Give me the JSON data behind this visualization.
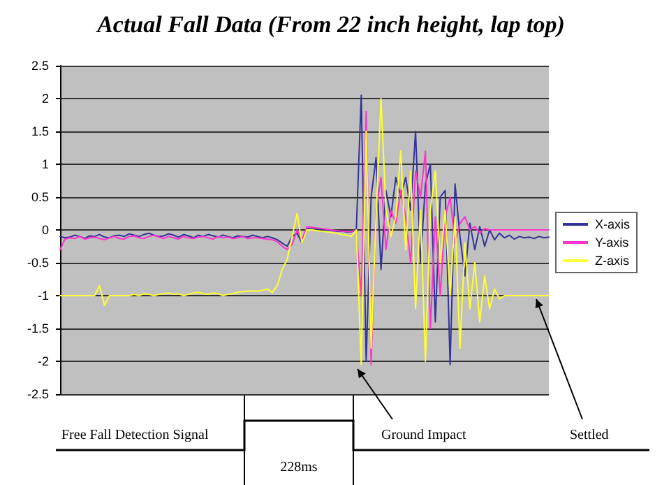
{
  "chart_data": {
    "type": "line",
    "title": "Actual Fall Data (From 22 inch height, lap top)",
    "categories": [
      null,
      null,
      null,
      null,
      null,
      null,
      null,
      null,
      null,
      null,
      null,
      null,
      null,
      null,
      null,
      null,
      null,
      null,
      null,
      null,
      null,
      null,
      null,
      null,
      null,
      null,
      null,
      null,
      null,
      null,
      null,
      null,
      null,
      null,
      null,
      null,
      null,
      null,
      null,
      null,
      null,
      null,
      null,
      null,
      null,
      null,
      null,
      null,
      null,
      null,
      null,
      null,
      null,
      null,
      null,
      null,
      null,
      null,
      null,
      null,
      null,
      null,
      null,
      null,
      null,
      null,
      null,
      null,
      null,
      null,
      null,
      null,
      null,
      null,
      null,
      null,
      null,
      null,
      null,
      null,
      null,
      null,
      null,
      null,
      null,
      null,
      null,
      null,
      null,
      null,
      null,
      null,
      null,
      null,
      null,
      null,
      null,
      null,
      null,
      null
    ],
    "series": [
      {
        "name": "X-axis",
        "color": "#333399",
        "values": [
          -0.1,
          -0.12,
          -0.11,
          -0.08,
          -0.1,
          -0.13,
          -0.09,
          -0.1,
          -0.07,
          -0.11,
          -0.12,
          -0.09,
          -0.08,
          -0.1,
          -0.06,
          -0.08,
          -0.1,
          -0.07,
          -0.05,
          -0.08,
          -0.1,
          -0.09,
          -0.06,
          -0.08,
          -0.11,
          -0.07,
          -0.09,
          -0.12,
          -0.08,
          -0.1,
          -0.07,
          -0.09,
          -0.11,
          -0.08,
          -0.1,
          -0.12,
          -0.09,
          -0.1,
          -0.11,
          -0.08,
          -0.1,
          -0.12,
          -0.1,
          -0.12,
          -0.15,
          -0.2,
          -0.25,
          -0.1,
          -0.05,
          -0.2,
          0.02,
          0.03,
          0.02,
          0.01,
          0,
          -0.01,
          -0.02,
          -0.02,
          -0.03,
          -0.03,
          0,
          2.05,
          -2,
          0.5,
          1.1,
          -0.6,
          0.6,
          0.2,
          0.8,
          0.5,
          0.8,
          0.3,
          1.5,
          -0.5,
          0.7,
          1,
          -1.4,
          0.5,
          0.6,
          -2.05,
          0.7,
          -0.1,
          -0.7,
          0.1,
          -0.3,
          0.05,
          -0.25,
          0,
          -0.15,
          -0.05,
          -0.12,
          -0.08,
          -0.14,
          -0.1,
          -0.12,
          -0.11,
          -0.13,
          -0.1,
          -0.12,
          -0.11
        ]
      },
      {
        "name": "Y-axis",
        "color": "#ff33cc",
        "values": [
          -0.3,
          -0.14,
          -0.12,
          -0.13,
          -0.1,
          -0.14,
          -0.12,
          -0.11,
          -0.13,
          -0.15,
          -0.12,
          -0.1,
          -0.13,
          -0.14,
          -0.1,
          -0.09,
          -0.12,
          -0.13,
          -0.1,
          -0.08,
          -0.11,
          -0.13,
          -0.1,
          -0.12,
          -0.14,
          -0.1,
          -0.12,
          -0.13,
          -0.11,
          -0.1,
          -0.12,
          -0.14,
          -0.1,
          -0.12,
          -0.11,
          -0.13,
          -0.12,
          -0.1,
          -0.13,
          -0.12,
          -0.12,
          -0.13,
          -0.14,
          -0.15,
          -0.18,
          -0.25,
          -0.3,
          -0.22,
          0,
          -0.15,
          0.05,
          0.04,
          0.03,
          0.02,
          0.01,
          0,
          -0.01,
          -0.02,
          -0.02,
          -0.03,
          0,
          -1,
          1.8,
          -2.05,
          0.3,
          0.8,
          -0.3,
          0.3,
          0.1,
          0.6,
          0.2,
          -0.5,
          0.9,
          0.5,
          1.2,
          -1.5,
          0.2,
          -1,
          0.2,
          0.5,
          -0.2,
          0.1,
          0.2,
          0,
          0.05,
          -0.05,
          0.02,
          0,
          0,
          0,
          0,
          0,
          0,
          0,
          0,
          0,
          0,
          0,
          0,
          0
        ]
      },
      {
        "name": "Z-axis",
        "color": "#ffff33",
        "values": [
          -1,
          -1,
          -1,
          -1,
          -1,
          -1,
          -1,
          -1,
          -0.85,
          -1.15,
          -1,
          -1,
          -1,
          -1,
          -1,
          -0.98,
          -1,
          -0.97,
          -0.98,
          -1,
          -0.98,
          -0.97,
          -0.96,
          -0.98,
          -0.97,
          -1,
          -0.98,
          -0.96,
          -0.95,
          -0.97,
          -0.98,
          -0.96,
          -0.97,
          -1,
          -0.98,
          -0.97,
          -0.95,
          -0.94,
          -0.93,
          -0.93,
          -0.93,
          -0.92,
          -0.9,
          -0.95,
          -0.85,
          -0.6,
          -0.45,
          -0.1,
          0.25,
          -0.2,
          0,
          0,
          -0.01,
          -0.02,
          -0.03,
          -0.04,
          -0.05,
          -0.07,
          -0.08,
          -0.1,
          0,
          -2.05,
          1.5,
          -1.8,
          0.2,
          2,
          0.3,
          -0.1,
          0.2,
          1.2,
          -0.3,
          0.9,
          -1.2,
          0.3,
          -2,
          0.3,
          0.9,
          -0.5,
          0.3,
          -1,
          0.2,
          -1.8,
          -0.2,
          -1.2,
          -0.5,
          -1.4,
          -0.7,
          -1.2,
          -0.9,
          -1.05,
          -1,
          -1,
          -1,
          -1,
          -1,
          -1,
          -1,
          -1,
          -1,
          -1
        ]
      }
    ],
    "ylim": [
      -2.5,
      2.5
    ],
    "yticks": [
      -2.5,
      -2,
      -1.5,
      -1,
      -0.5,
      0,
      0.5,
      1,
      1.5,
      2,
      2.5
    ],
    "tick_labels": "y",
    "grid": "y",
    "legend": "right",
    "line_style": "solid",
    "annotations": [
      "Free Fall Detection Signal",
      "228ms",
      "Ground Impact",
      "Settled"
    ]
  }
}
